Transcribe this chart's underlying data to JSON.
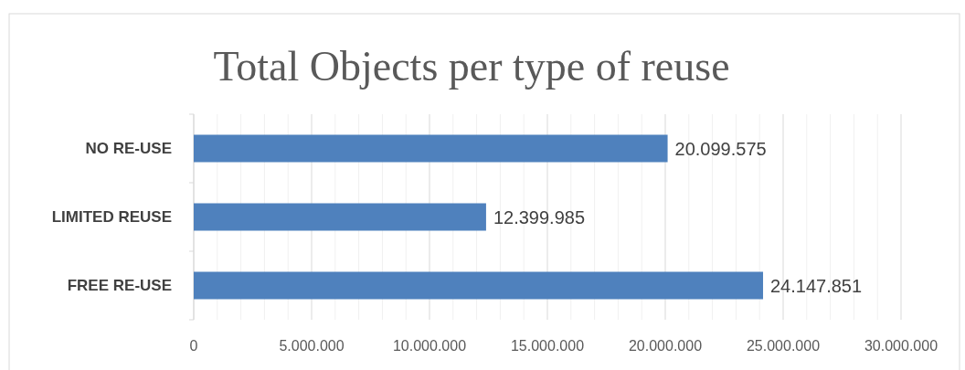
{
  "chart_data": {
    "type": "bar",
    "orientation": "horizontal",
    "title": "Total Objects per type of reuse",
    "categories": [
      "NO RE-USE",
      "LIMITED REUSE",
      "FREE RE-USE"
    ],
    "values": [
      20099575,
      12399985,
      24147851
    ],
    "value_labels": [
      "20.099.575",
      "12.399.985",
      "24.147.851"
    ],
    "color": "#4f81bd",
    "xlim": [
      0,
      30000000
    ],
    "xticks": [
      0,
      {
        "value": 1000000,
        "label": null
      },
      {
        "value": 2000000,
        "label": null
      },
      {
        "value": 3000000,
        "label": null
      },
      {
        "value": 4000000,
        "label": null
      },
      {
        "value": 5000000,
        "label": "5.000.000"
      },
      {
        "value": 6000000,
        "label": null
      },
      {
        "value": 7000000,
        "label": null
      },
      {
        "value": 8000000,
        "label": null
      },
      {
        "value": 9000000,
        "label": null
      },
      {
        "value": 10000000,
        "label": "10.000.000"
      },
      {
        "value": 11000000,
        "label": null
      },
      {
        "value": 12000000,
        "label": null
      },
      {
        "value": 13000000,
        "label": null
      },
      {
        "value": 14000000,
        "label": null
      },
      {
        "value": 15000000,
        "label": "15.000.000"
      },
      {
        "value": 16000000,
        "label": null
      },
      {
        "value": 17000000,
        "label": null
      },
      {
        "value": 18000000,
        "label": null
      },
      {
        "value": 19000000,
        "label": null
      },
      {
        "value": 20000000,
        "label": "20.000.000"
      },
      {
        "value": 21000000,
        "label": null
      },
      {
        "value": 22000000,
        "label": null
      },
      {
        "value": 23000000,
        "label": null
      },
      {
        "value": 24000000,
        "label": null
      },
      {
        "value": 25000000,
        "label": "25.000.000"
      },
      {
        "value": 26000000,
        "label": null
      },
      {
        "value": 27000000,
        "label": null
      },
      {
        "value": 28000000,
        "label": null
      },
      {
        "value": 29000000,
        "label": null
      },
      {
        "value": 30000000,
        "label": "30.000.000"
      }
    ],
    "grid": "x"
  }
}
